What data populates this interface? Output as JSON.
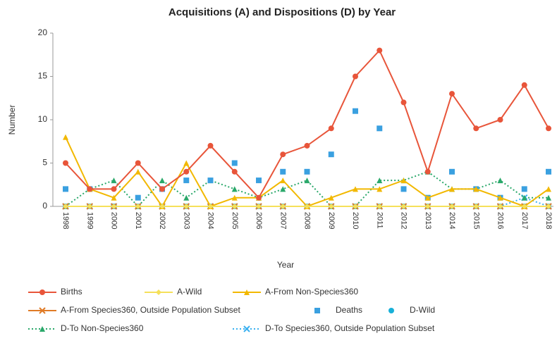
{
  "chart_data": {
    "type": "line",
    "title": "Acquisitions (A) and Dispositions (D) by Year",
    "x_label": "Year",
    "y_label": "Number",
    "categories": [
      "1998",
      "1999",
      "2000",
      "2001",
      "2002",
      "2003",
      "2004",
      "2005",
      "2006",
      "2007",
      "2008",
      "2009",
      "2010",
      "2011",
      "2012",
      "2013",
      "2014",
      "2015",
      "2016",
      "2017",
      "2018"
    ],
    "ylim": [
      0,
      20
    ],
    "yticks": [
      0,
      5,
      10,
      15,
      20
    ],
    "grid": false,
    "legend": "bottom",
    "series": [
      {
        "name": "Births",
        "color": "#e8553a",
        "line": "solid",
        "marker": "circle",
        "values": [
          5,
          2,
          2,
          5,
          2,
          4,
          7,
          4,
          1,
          6,
          7,
          9,
          15,
          18,
          12,
          4,
          13,
          9,
          10,
          14,
          9
        ]
      },
      {
        "name": "A-Wild",
        "color": "#f5e05a",
        "line": "solid",
        "marker": "diamond",
        "values": [
          0,
          0,
          0,
          0,
          0,
          0,
          0,
          0,
          0,
          0,
          0,
          0,
          0,
          0,
          0,
          0,
          0,
          0,
          0,
          0,
          0
        ]
      },
      {
        "name": "A-From Non-Species360",
        "color": "#f2b800",
        "line": "solid",
        "marker": "triangle",
        "values": [
          8,
          2,
          1,
          4,
          0,
          5,
          0,
          1,
          1,
          3,
          0,
          1,
          2,
          2,
          3,
          1,
          2,
          2,
          1,
          0,
          2
        ]
      },
      {
        "name": "A-From Species360, Outside Population Subset",
        "color": "#e07b26",
        "line": "solid",
        "marker": "x",
        "values": [
          0,
          0,
          0,
          0,
          0,
          0,
          0,
          0,
          0,
          0,
          0,
          0,
          0,
          0,
          0,
          0,
          0,
          0,
          0,
          0,
          0
        ]
      },
      {
        "name": "Deaths",
        "color": "#3aa0e0",
        "line": null,
        "marker": "square",
        "values": [
          2,
          2,
          0,
          1,
          2,
          3,
          3,
          5,
          3,
          4,
          4,
          6,
          11,
          9,
          2,
          1,
          4,
          2,
          1,
          2,
          4
        ]
      },
      {
        "name": "D-Wild",
        "color": "#18b0d8",
        "line": null,
        "marker": "circle",
        "values": [
          0,
          0,
          0,
          0,
          0,
          0,
          0,
          0,
          0,
          0,
          0,
          0,
          0,
          0,
          0,
          0,
          0,
          0,
          0,
          0,
          0
        ]
      },
      {
        "name": "D-To Non-Species360",
        "color": "#2aa86a",
        "line": "dotted",
        "marker": "triangle",
        "values": [
          0,
          2,
          3,
          0,
          3,
          1,
          3,
          2,
          1,
          2,
          3,
          0,
          0,
          3,
          3,
          4,
          2,
          2,
          3,
          1,
          1
        ]
      },
      {
        "name": "D-To Species360, Outside Population Subset",
        "color": "#3ab0f0",
        "line": "dotted",
        "marker": "x",
        "values": [
          0,
          0,
          0,
          0,
          0,
          0,
          0,
          0,
          0,
          0,
          0,
          0,
          0,
          0,
          0,
          0,
          0,
          0,
          0,
          1,
          0
        ]
      }
    ]
  }
}
